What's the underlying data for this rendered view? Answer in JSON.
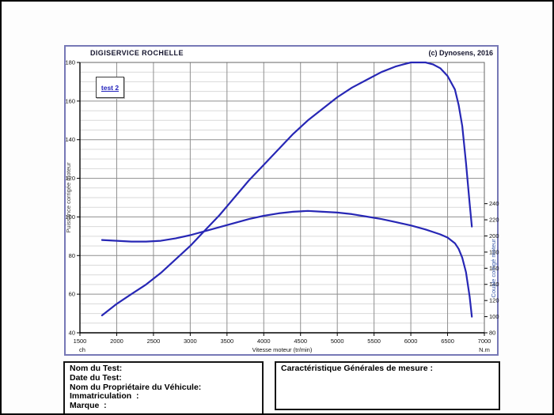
{
  "chart_data": {
    "type": "line",
    "title": "DIGISERVICE ROCHELLE",
    "copyright": "(c) Dynosens, 2016",
    "legend": [
      "test 2"
    ],
    "grid": "on",
    "legend_position": "top-left-inside",
    "x_axis": {
      "label": "Vitesse moteur (tr/min)",
      "min": 1500,
      "max": 7000,
      "tick_step": 500,
      "ticks": [
        1500,
        2000,
        2500,
        3000,
        3500,
        4000,
        4500,
        5000,
        5500,
        6000,
        6500,
        7000
      ]
    },
    "y_left": {
      "label": "Puissance corrigée moteur",
      "unit": "ch",
      "min": 40,
      "max": 180,
      "tick_step": 20,
      "minor_step": 5,
      "ticks": [
        40,
        60,
        80,
        100,
        120,
        140,
        160,
        180
      ]
    },
    "y_right": {
      "label": "Couple corrigé moteur",
      "unit": "N.m",
      "min": 80,
      "max": 415,
      "tick_step": 20,
      "ticks": [
        80,
        100,
        120,
        140,
        160,
        180,
        200,
        220,
        240
      ]
    },
    "series": [
      {
        "name": "Puissance corrigée moteur (ch)",
        "axis": "left",
        "color": "#2727b5",
        "points": [
          [
            1800,
            49
          ],
          [
            2000,
            55
          ],
          [
            2200,
            60
          ],
          [
            2400,
            65
          ],
          [
            2600,
            71
          ],
          [
            2800,
            78
          ],
          [
            3000,
            85
          ],
          [
            3200,
            93
          ],
          [
            3400,
            101
          ],
          [
            3600,
            110
          ],
          [
            3800,
            119
          ],
          [
            4000,
            127
          ],
          [
            4200,
            135
          ],
          [
            4400,
            143
          ],
          [
            4600,
            150
          ],
          [
            4800,
            156
          ],
          [
            5000,
            162
          ],
          [
            5200,
            167
          ],
          [
            5400,
            171
          ],
          [
            5600,
            175
          ],
          [
            5800,
            178
          ],
          [
            6000,
            180
          ],
          [
            6100,
            180
          ],
          [
            6200,
            180
          ],
          [
            6300,
            179
          ],
          [
            6400,
            177
          ],
          [
            6500,
            173
          ],
          [
            6600,
            166
          ],
          [
            6650,
            158
          ],
          [
            6700,
            147
          ],
          [
            6750,
            128
          ],
          [
            6800,
            107
          ],
          [
            6830,
            95
          ]
        ]
      },
      {
        "name": "Couple corrigé moteur (N.m)",
        "axis": "right",
        "color": "#2727b5",
        "points": [
          [
            1800,
            195
          ],
          [
            2000,
            194
          ],
          [
            2200,
            193
          ],
          [
            2400,
            193
          ],
          [
            2600,
            194
          ],
          [
            2800,
            197
          ],
          [
            3000,
            201
          ],
          [
            3200,
            206
          ],
          [
            3400,
            211
          ],
          [
            3600,
            216
          ],
          [
            3800,
            221
          ],
          [
            4000,
            225
          ],
          [
            4200,
            228
          ],
          [
            4400,
            230
          ],
          [
            4600,
            231
          ],
          [
            4800,
            230
          ],
          [
            5000,
            229
          ],
          [
            5200,
            227
          ],
          [
            5400,
            224
          ],
          [
            5600,
            221
          ],
          [
            5800,
            217
          ],
          [
            6000,
            213
          ],
          [
            6200,
            208
          ],
          [
            6400,
            202
          ],
          [
            6500,
            198
          ],
          [
            6600,
            191
          ],
          [
            6650,
            184
          ],
          [
            6700,
            173
          ],
          [
            6750,
            155
          ],
          [
            6800,
            125
          ],
          [
            6830,
            100
          ]
        ]
      }
    ]
  },
  "forms": {
    "left_box": {
      "lines": [
        "Nom du Test:",
        "Date du Test:",
        "Nom du Propriétaire du Véhicule:",
        "Immatriculation  :",
        "Marque  :"
      ]
    },
    "right_box": {
      "title": "Caractéristique Générales de mesure :"
    }
  },
  "colors": {
    "curve": "#2727b5",
    "widget_border": "#7678b6",
    "grid_major": "#8f8f8f",
    "grid_minor": "#d9d9d9",
    "axis": "#000000",
    "right_axis_title": "#3a5aaa",
    "left_axis_title": "#3c3c3c",
    "header_text": "#15152e"
  }
}
